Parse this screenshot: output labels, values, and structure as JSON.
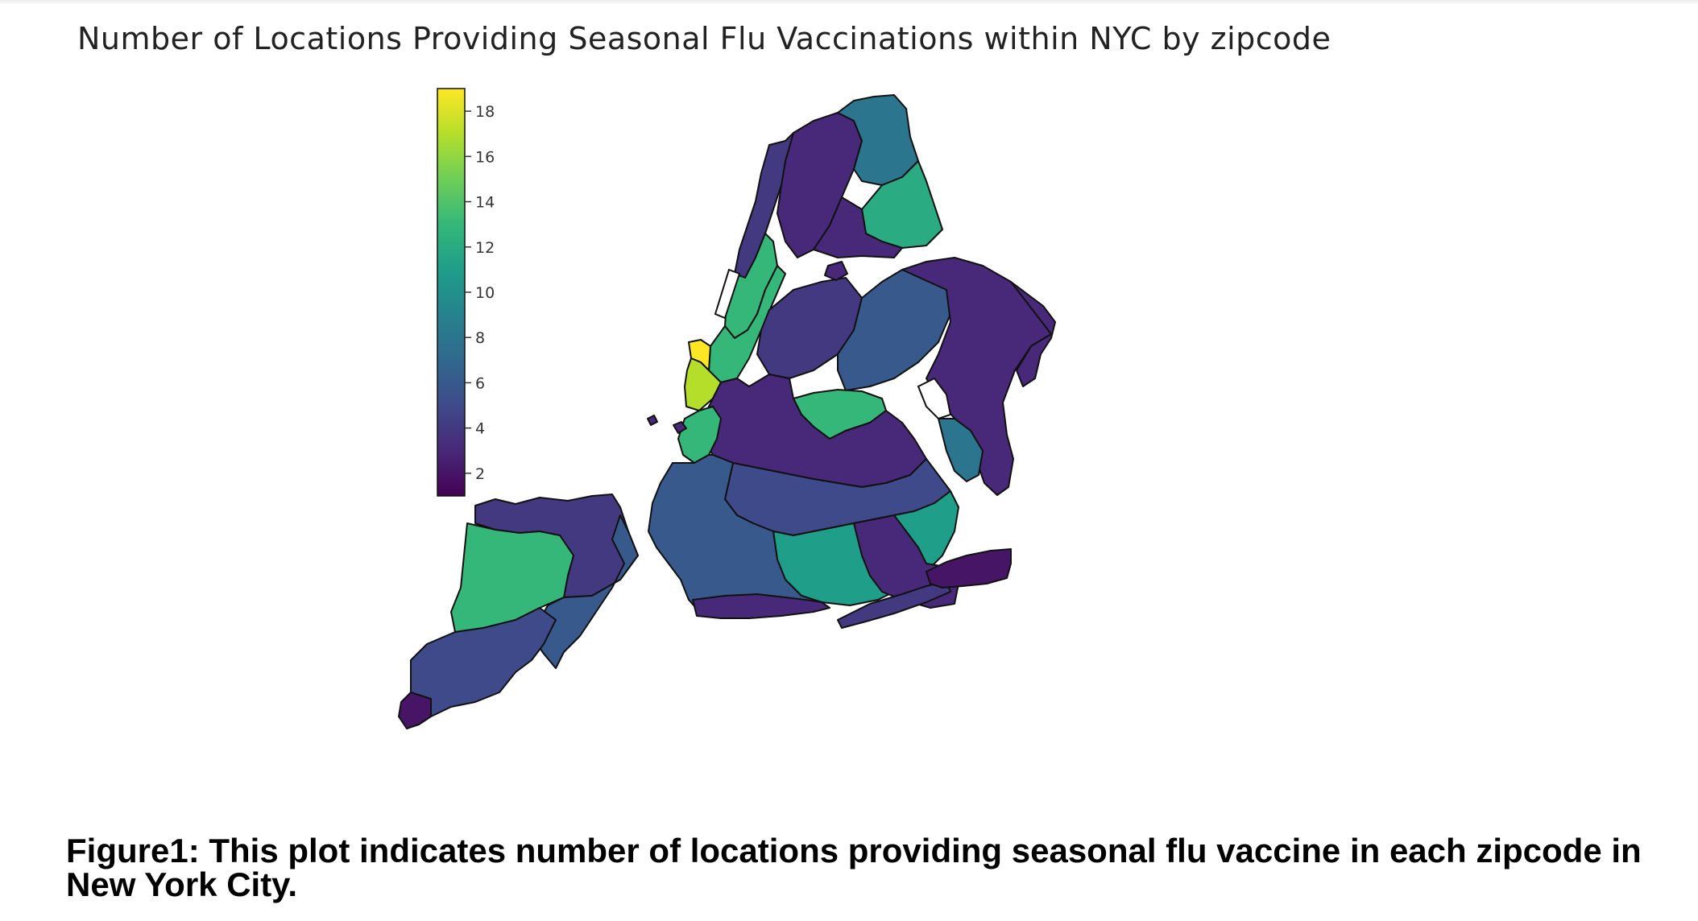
{
  "title": "Number of Locations Providing Seasonal Flu Vaccinations within NYC by zipcode",
  "caption": "Figure1: This plot indicates number of locations providing seasonal flu vaccine in each zipcode in New York City.",
  "colorbar": {
    "colormap": "viridis",
    "min": 1,
    "max": 19,
    "ticks": [
      "2",
      "4",
      "6",
      "8",
      "10",
      "12",
      "14",
      "16",
      "18"
    ],
    "stops": [
      "#440154",
      "#482878",
      "#3e4a89",
      "#31688e",
      "#26828e",
      "#1f9e89",
      "#35b779",
      "#6ece58",
      "#b5de2b",
      "#fde725"
    ]
  },
  "regions": [
    {
      "name": "staten-island-north-shore",
      "value": 4
    },
    {
      "name": "staten-island-central",
      "value": 13
    },
    {
      "name": "staten-island-east-shore",
      "value": 6
    },
    {
      "name": "staten-island-south-shore",
      "value": 5
    },
    {
      "name": "staten-island-southern-tip",
      "value": 2
    },
    {
      "name": "manhattan-upper",
      "value": 4
    },
    {
      "name": "manhattan-upper-west",
      "value": 13
    },
    {
      "name": "manhattan-midtown",
      "value": 13
    },
    {
      "name": "manhattan-midtown-peak",
      "value": 19
    },
    {
      "name": "manhattan-lower",
      "value": 17
    },
    {
      "name": "bronx-west",
      "value": 3
    },
    {
      "name": "bronx-central",
      "value": 8
    },
    {
      "name": "bronx-east",
      "value": 12
    },
    {
      "name": "queens-west",
      "value": 4
    },
    {
      "name": "queens-central",
      "value": 6
    },
    {
      "name": "queens-east",
      "value": 3
    },
    {
      "name": "queens-forest-park",
      "value": 13
    },
    {
      "name": "queens-jamaica",
      "value": 8
    },
    {
      "name": "brooklyn-north",
      "value": 3
    },
    {
      "name": "brooklyn-west",
      "value": 13
    },
    {
      "name": "brooklyn-central",
      "value": 5
    },
    {
      "name": "brooklyn-south",
      "value": 11
    },
    {
      "name": "brooklyn-southwest",
      "value": 6
    },
    {
      "name": "rockaway-peninsula",
      "value": 4
    },
    {
      "name": "rockaway-east",
      "value": 2
    }
  ]
}
